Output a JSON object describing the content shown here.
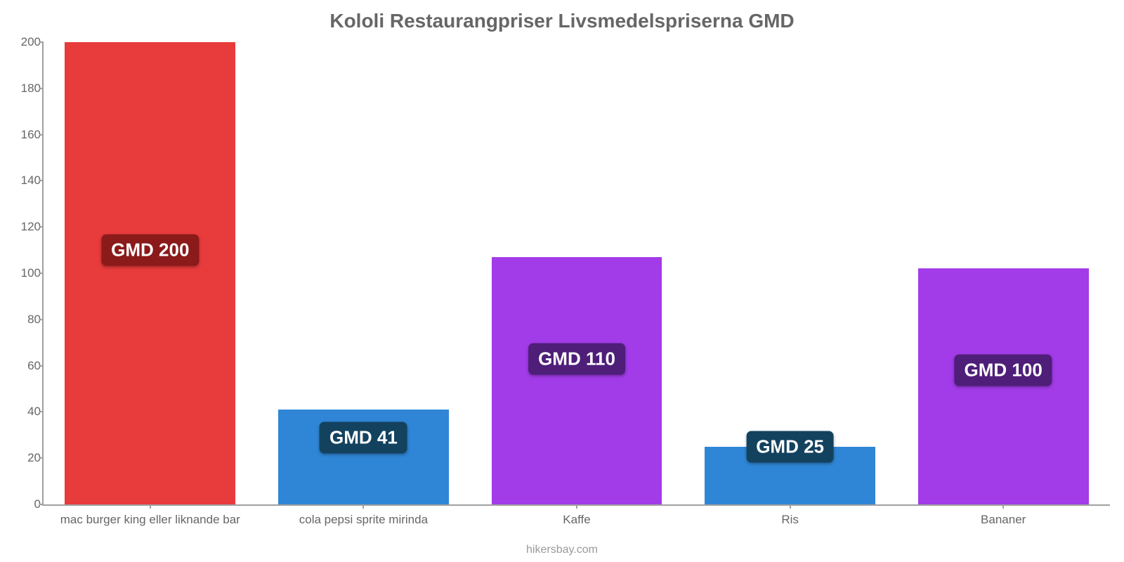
{
  "chart": {
    "type": "bar",
    "title": "Kololi Restaurangpriser Livsmedelspriserna GMD",
    "title_color": "#666666",
    "title_fontsize": 28,
    "footer": "hikersbay.com",
    "footer_color": "#999999",
    "background_color": "#ffffff",
    "axis_color": "#a0a0a0",
    "label_color": "#666666",
    "label_fontsize": 17,
    "value_prefix": "GMD ",
    "ylim": [
      0,
      200
    ],
    "yticks": [
      0,
      20,
      40,
      60,
      80,
      100,
      120,
      140,
      160,
      180,
      200
    ],
    "bar_width_ratio": 0.8,
    "badge_fontsize": 26,
    "data": [
      {
        "category": "mac burger king eller liknande bar",
        "value": 200,
        "bar_color": "#e83b3b",
        "badge_bg": "#8b1a1a",
        "badge_y": 110
      },
      {
        "category": "cola pepsi sprite mirinda",
        "value": 41,
        "bar_color": "#2f86d6",
        "badge_bg": "#13425f",
        "badge_y": 29
      },
      {
        "category": "Kaffe",
        "value": 107,
        "bar_color": "#a23be8",
        "badge_bg": "#4e1e79",
        "badge_y": 63
      },
      {
        "category": "Ris",
        "value": 25,
        "bar_color": "#2f86d6",
        "badge_bg": "#13425f",
        "badge_y": 25
      },
      {
        "category": "Bananer",
        "value": 102,
        "bar_color": "#a23be8",
        "badge_bg": "#4e1e79",
        "badge_y": 58
      }
    ],
    "display_values": [
      "GMD 200",
      "GMD 41",
      "GMD 110",
      "GMD 25",
      "GMD 100"
    ]
  }
}
